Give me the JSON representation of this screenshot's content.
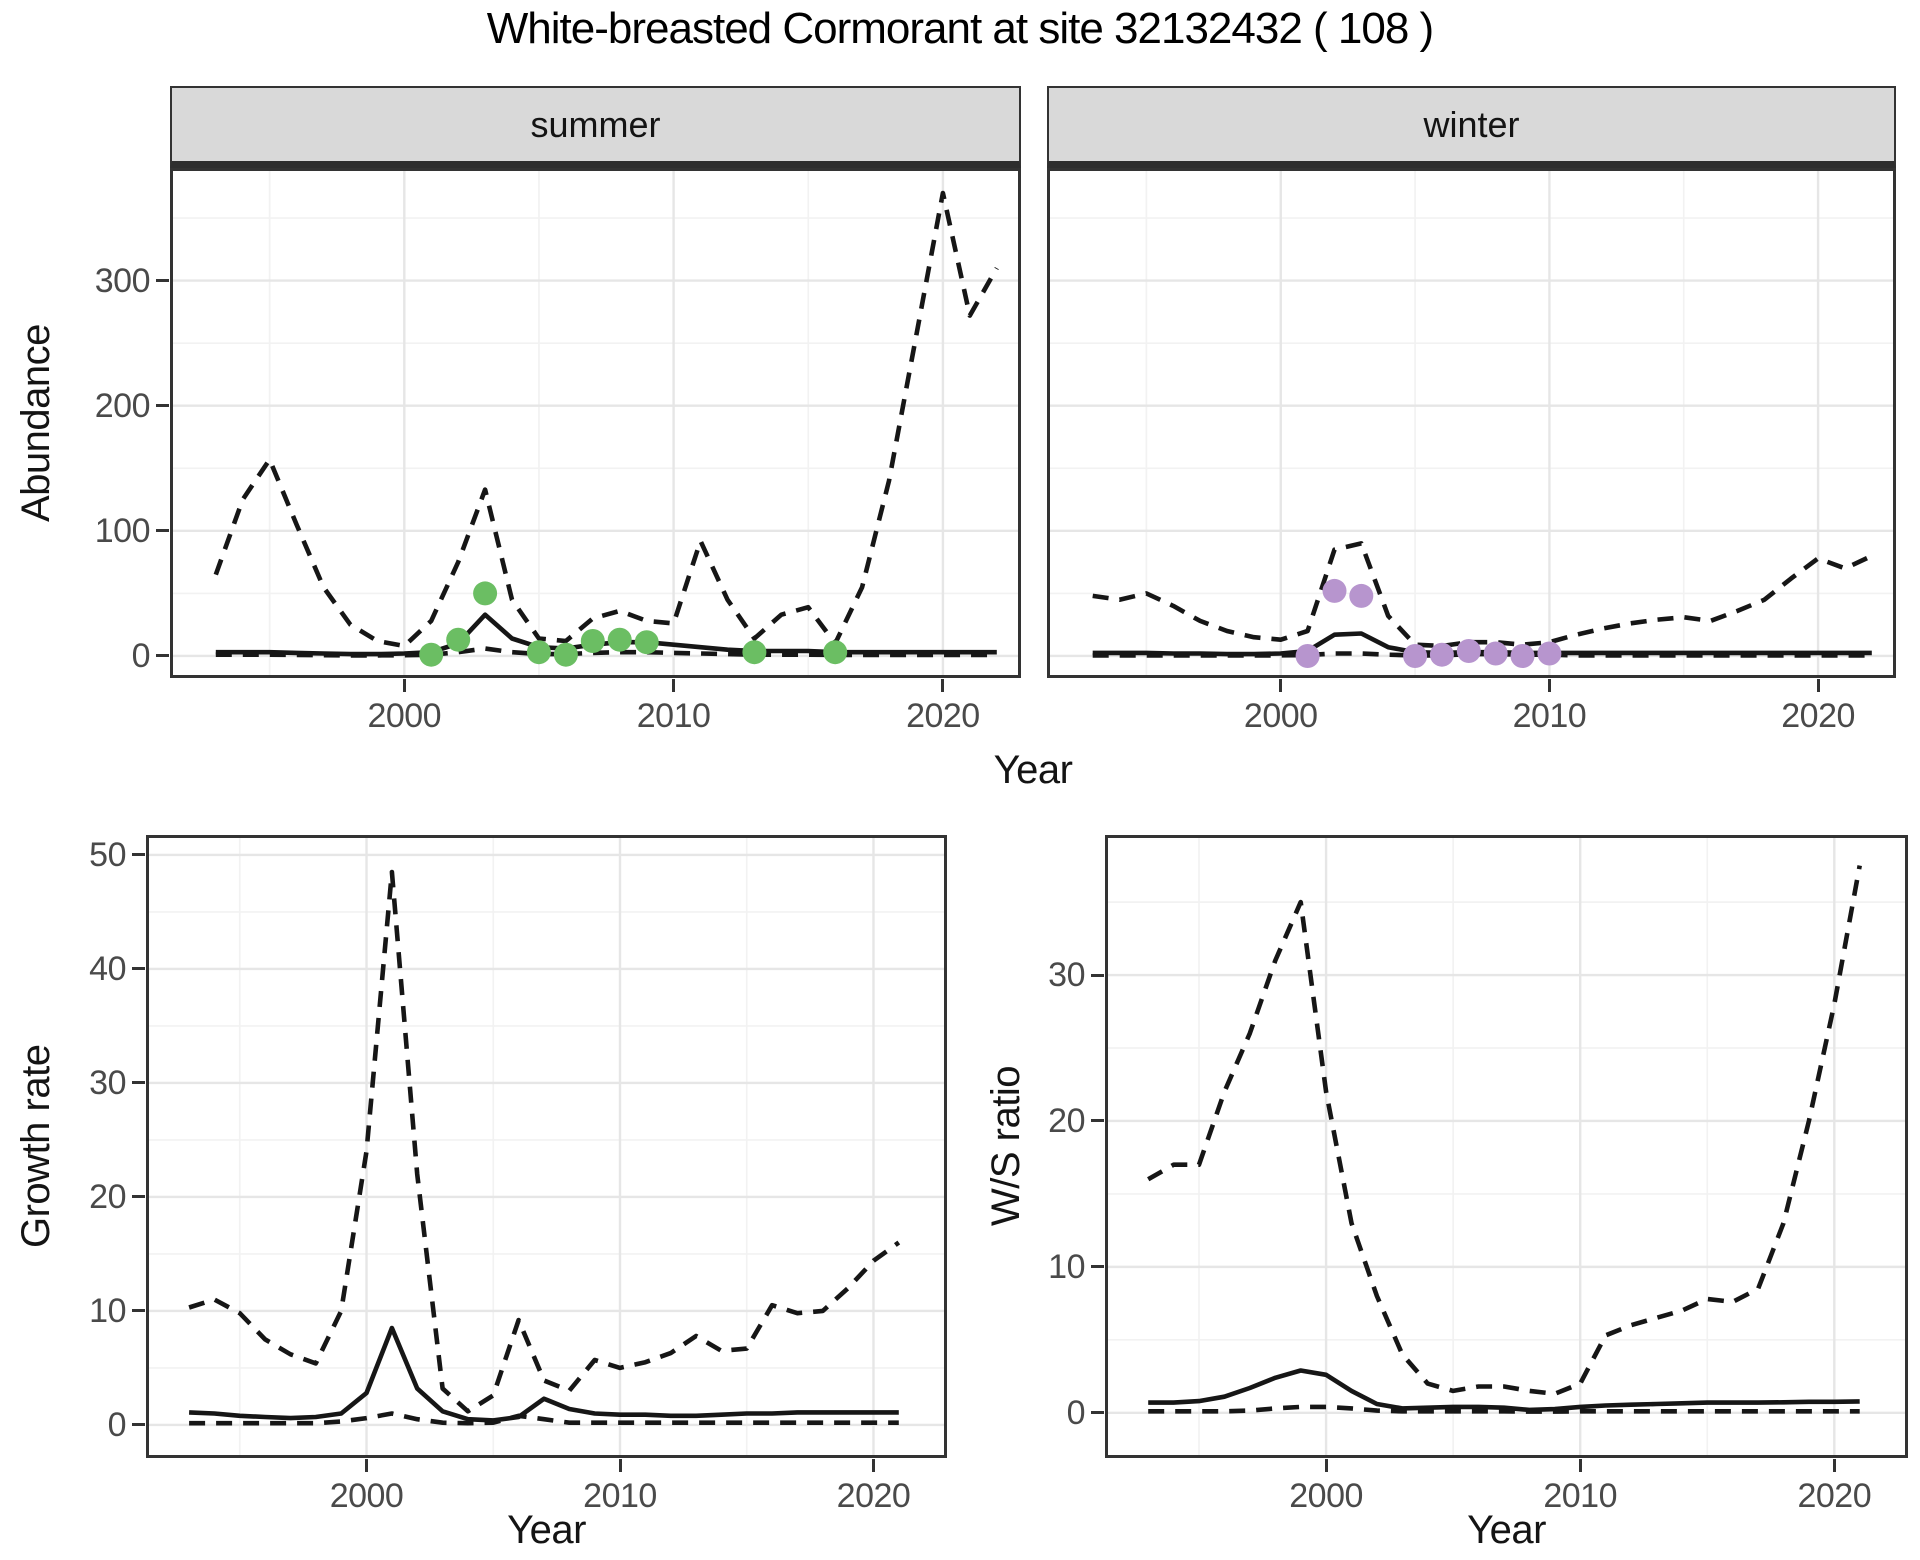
{
  "title": "White-breasted Cormorant at site 32132432 ( 108 )",
  "facets": {
    "summer": "summer",
    "winter": "winter"
  },
  "axes": {
    "abundance": "Abundance",
    "year": "Year",
    "growth": "Growth rate",
    "ws": "W/S ratio"
  },
  "colors": {
    "line": "#161616",
    "observed_summer": "#6BBE63",
    "observed_winter": "#B795CE",
    "grid_major": "#E6E6E6",
    "grid_minor": "#F2F2F2",
    "strip_bg": "#D9D9D9",
    "panel_border": "#333333",
    "tick_text": "#4A4A4A"
  },
  "chart_data": [
    {
      "id": "abundance-summer",
      "type": "line",
      "facet": "summer",
      "xlabel": "Year",
      "ylabel": "Abundance",
      "xlim": [
        1991.3,
        2022.9
      ],
      "ylim": [
        -17.6,
        390
      ],
      "x_ticks": [
        2000,
        2010,
        2020
      ],
      "x_minor": [
        1995,
        2005,
        2015
      ],
      "y_ticks": [
        0,
        100,
        200,
        300
      ],
      "y_minor": [
        50,
        150,
        250,
        350
      ],
      "years": [
        1993,
        1994,
        1995,
        1996,
        1997,
        1998,
        1999,
        2000,
        2001,
        2002,
        2003,
        2004,
        2005,
        2006,
        2007,
        2008,
        2009,
        2010,
        2011,
        2012,
        2013,
        2014,
        2015,
        2016,
        2017,
        2018,
        2019,
        2020,
        2021,
        2022
      ],
      "series": [
        {
          "name": "upper_95ci",
          "style": "dashed",
          "values": [
            65,
            125,
            157,
            105,
            55,
            25,
            12,
            8,
            28,
            75,
            133,
            45,
            14,
            12,
            30,
            36,
            28,
            26,
            92,
            45,
            14,
            33,
            39,
            10,
            55,
            140,
            255,
            370,
            272,
            310
          ]
        },
        {
          "name": "lower_95ci",
          "style": "dashed",
          "values": [
            1,
            1,
            1,
            0.8,
            0.6,
            0.5,
            0.5,
            0.6,
            1,
            3,
            6,
            3,
            1.5,
            1.5,
            2.5,
            3,
            3,
            2.5,
            2,
            1.5,
            1,
            1,
            1,
            0.8,
            0.8,
            0.8,
            0.8,
            0.8,
            0.8,
            0.8
          ]
        },
        {
          "name": "median_fit",
          "style": "solid",
          "values": [
            3,
            3,
            3,
            2.5,
            2,
            1.5,
            1.5,
            2,
            3,
            10,
            33,
            14,
            7,
            6,
            9,
            11,
            11,
            9,
            7,
            5,
            4,
            4,
            4,
            3,
            3,
            3,
            3,
            3,
            3,
            3
          ]
        }
      ],
      "observations": {
        "name": "observed_counts_summer",
        "color": "#6BBE63",
        "points": [
          [
            2001,
            1
          ],
          [
            2002,
            13
          ],
          [
            2003,
            50
          ],
          [
            2005,
            3
          ],
          [
            2006,
            1
          ],
          [
            2007,
            12
          ],
          [
            2008,
            13
          ],
          [
            2009,
            11
          ],
          [
            2013,
            3
          ],
          [
            2016,
            3
          ]
        ]
      }
    },
    {
      "id": "abundance-winter",
      "type": "line",
      "facet": "winter",
      "xlabel": "Year",
      "ylabel": "Abundance",
      "xlim": [
        1991.3,
        2022.9
      ],
      "ylim": [
        -17.6,
        390
      ],
      "x_ticks": [
        2000,
        2010,
        2020
      ],
      "x_minor": [
        1995,
        2005,
        2015
      ],
      "y_ticks": [
        0,
        100,
        200,
        300
      ],
      "y_minor": [
        50,
        150,
        250,
        350
      ],
      "years": [
        1993,
        1994,
        1995,
        1996,
        1997,
        1998,
        1999,
        2000,
        2001,
        2002,
        2003,
        2004,
        2005,
        2006,
        2007,
        2008,
        2009,
        2010,
        2011,
        2012,
        2013,
        2014,
        2015,
        2016,
        2017,
        2018,
        2019,
        2020,
        2021,
        2022
      ],
      "series": [
        {
          "name": "upper_95ci",
          "style": "dashed",
          "values": [
            48,
            45,
            50,
            40,
            28,
            20,
            15,
            13,
            20,
            85,
            90,
            32,
            9,
            8,
            11,
            11,
            9,
            11,
            17,
            22,
            26,
            29,
            31,
            28,
            36,
            45,
            62,
            78,
            70,
            80
          ]
        },
        {
          "name": "lower_95ci",
          "style": "dashed",
          "values": [
            0.5,
            0.5,
            0.5,
            0.5,
            0.5,
            0.5,
            0.5,
            0.5,
            0.8,
            2,
            2,
            1,
            0.5,
            0.5,
            1.5,
            1.5,
            1,
            1,
            0.5,
            0.5,
            0.5,
            0.5,
            0.5,
            0.5,
            0.5,
            0.5,
            0.5,
            0.5,
            0.5,
            0.5
          ]
        },
        {
          "name": "median_fit",
          "style": "solid",
          "values": [
            2.5,
            2.5,
            2.5,
            2,
            2,
            1.5,
            1.5,
            2,
            4,
            17,
            18,
            7,
            3,
            2.5,
            3,
            3,
            2.5,
            2.5,
            2.5,
            2.5,
            2.5,
            2.5,
            2.5,
            2.5,
            2.5,
            2.5,
            2.5,
            2.5,
            2.5,
            2.5
          ]
        }
      ],
      "observations": {
        "name": "observed_counts_winter",
        "color": "#B795CE",
        "points": [
          [
            2001,
            0
          ],
          [
            2002,
            52
          ],
          [
            2003,
            48
          ],
          [
            2005,
            0
          ],
          [
            2006,
            1
          ],
          [
            2007,
            4
          ],
          [
            2008,
            2
          ],
          [
            2009,
            0
          ],
          [
            2010,
            2
          ]
        ]
      }
    },
    {
      "id": "growth-rate",
      "type": "line",
      "facet": null,
      "xlabel": "Year",
      "ylabel": "Growth rate",
      "xlim": [
        1991.3,
        2022.9
      ],
      "ylim": [
        -2.9,
        51.75
      ],
      "x_ticks": [
        2000,
        2010,
        2020
      ],
      "x_minor": [
        1995,
        2005,
        2015
      ],
      "y_ticks": [
        0,
        10,
        20,
        30,
        40,
        50
      ],
      "y_minor": [
        5,
        15,
        25,
        35,
        45
      ],
      "years": [
        1993,
        1994,
        1995,
        1996,
        1997,
        1998,
        1999,
        2000,
        2001,
        2002,
        2003,
        2004,
        2005,
        2006,
        2007,
        2008,
        2009,
        2010,
        2011,
        2012,
        2013,
        2014,
        2015,
        2016,
        2017,
        2018,
        2019,
        2020,
        2021
      ],
      "series": [
        {
          "name": "upper_95ci",
          "style": "dashed",
          "values": [
            10.3,
            11,
            9.8,
            7.5,
            6.2,
            5.4,
            10,
            24,
            48.5,
            22,
            3.2,
            1.2,
            2.6,
            9.2,
            3.9,
            3,
            5.7,
            5,
            5.5,
            6.3,
            7.8,
            6.5,
            6.7,
            10.5,
            9.8,
            10,
            12,
            14.4,
            16
          ]
        },
        {
          "name": "lower_95ci",
          "style": "dashed",
          "values": [
            0.15,
            0.15,
            0.15,
            0.15,
            0.15,
            0.15,
            0.3,
            0.6,
            1,
            0.5,
            0.2,
            0.15,
            0.2,
            0.8,
            0.5,
            0.2,
            0.2,
            0.2,
            0.2,
            0.2,
            0.2,
            0.2,
            0.2,
            0.2,
            0.2,
            0.2,
            0.2,
            0.2,
            0.2
          ]
        },
        {
          "name": "median_fit",
          "style": "solid",
          "values": [
            1.1,
            1,
            0.8,
            0.7,
            0.6,
            0.7,
            1,
            2.8,
            8.5,
            3.2,
            1.2,
            0.5,
            0.4,
            0.7,
            2.3,
            1.4,
            1,
            0.9,
            0.9,
            0.8,
            0.8,
            0.9,
            1,
            1,
            1.1,
            1.1,
            1.1,
            1.1,
            1.1
          ]
        }
      ]
    },
    {
      "id": "ws-ratio",
      "type": "line",
      "facet": null,
      "xlabel": "Year",
      "ylabel": "W/S ratio",
      "xlim": [
        1991.3,
        2022.9
      ],
      "ylim": [
        -3.1,
        39.6
      ],
      "x_ticks": [
        2000,
        2010,
        2020
      ],
      "x_minor": [
        1995,
        2005,
        2015
      ],
      "y_ticks": [
        0,
        10,
        20,
        30
      ],
      "y_minor": [
        5,
        15,
        25,
        35
      ],
      "years": [
        1993,
        1994,
        1995,
        1996,
        1997,
        1998,
        1999,
        2000,
        2001,
        2002,
        2003,
        2004,
        2005,
        2006,
        2007,
        2008,
        2009,
        2010,
        2011,
        2012,
        2013,
        2014,
        2015,
        2016,
        2017,
        2018,
        2019,
        2020,
        2021
      ],
      "series": [
        {
          "name": "upper_95ci",
          "style": "dashed",
          "values": [
            16,
            17,
            17,
            22,
            26,
            31,
            35,
            22,
            13,
            8,
            4,
            2,
            1.5,
            1.8,
            1.8,
            1.5,
            1.3,
            2,
            5.3,
            6,
            6.5,
            7,
            7.8,
            7.6,
            8.5,
            13,
            20,
            28,
            37.5
          ]
        },
        {
          "name": "lower_95ci",
          "style": "dashed",
          "values": [
            0.1,
            0.1,
            0.1,
            0.1,
            0.15,
            0.3,
            0.4,
            0.4,
            0.3,
            0.15,
            0.1,
            0.1,
            0.1,
            0.1,
            0.1,
            0.08,
            0.08,
            0.1,
            0.1,
            0.1,
            0.1,
            0.1,
            0.1,
            0.1,
            0.1,
            0.1,
            0.1,
            0.1,
            0.1
          ]
        },
        {
          "name": "median_fit",
          "style": "solid",
          "values": [
            0.7,
            0.7,
            0.8,
            1.1,
            1.7,
            2.4,
            2.9,
            2.6,
            1.5,
            0.6,
            0.3,
            0.35,
            0.4,
            0.4,
            0.35,
            0.2,
            0.25,
            0.4,
            0.5,
            0.55,
            0.6,
            0.65,
            0.7,
            0.7,
            0.7,
            0.72,
            0.75,
            0.75,
            0.78
          ]
        }
      ]
    }
  ]
}
